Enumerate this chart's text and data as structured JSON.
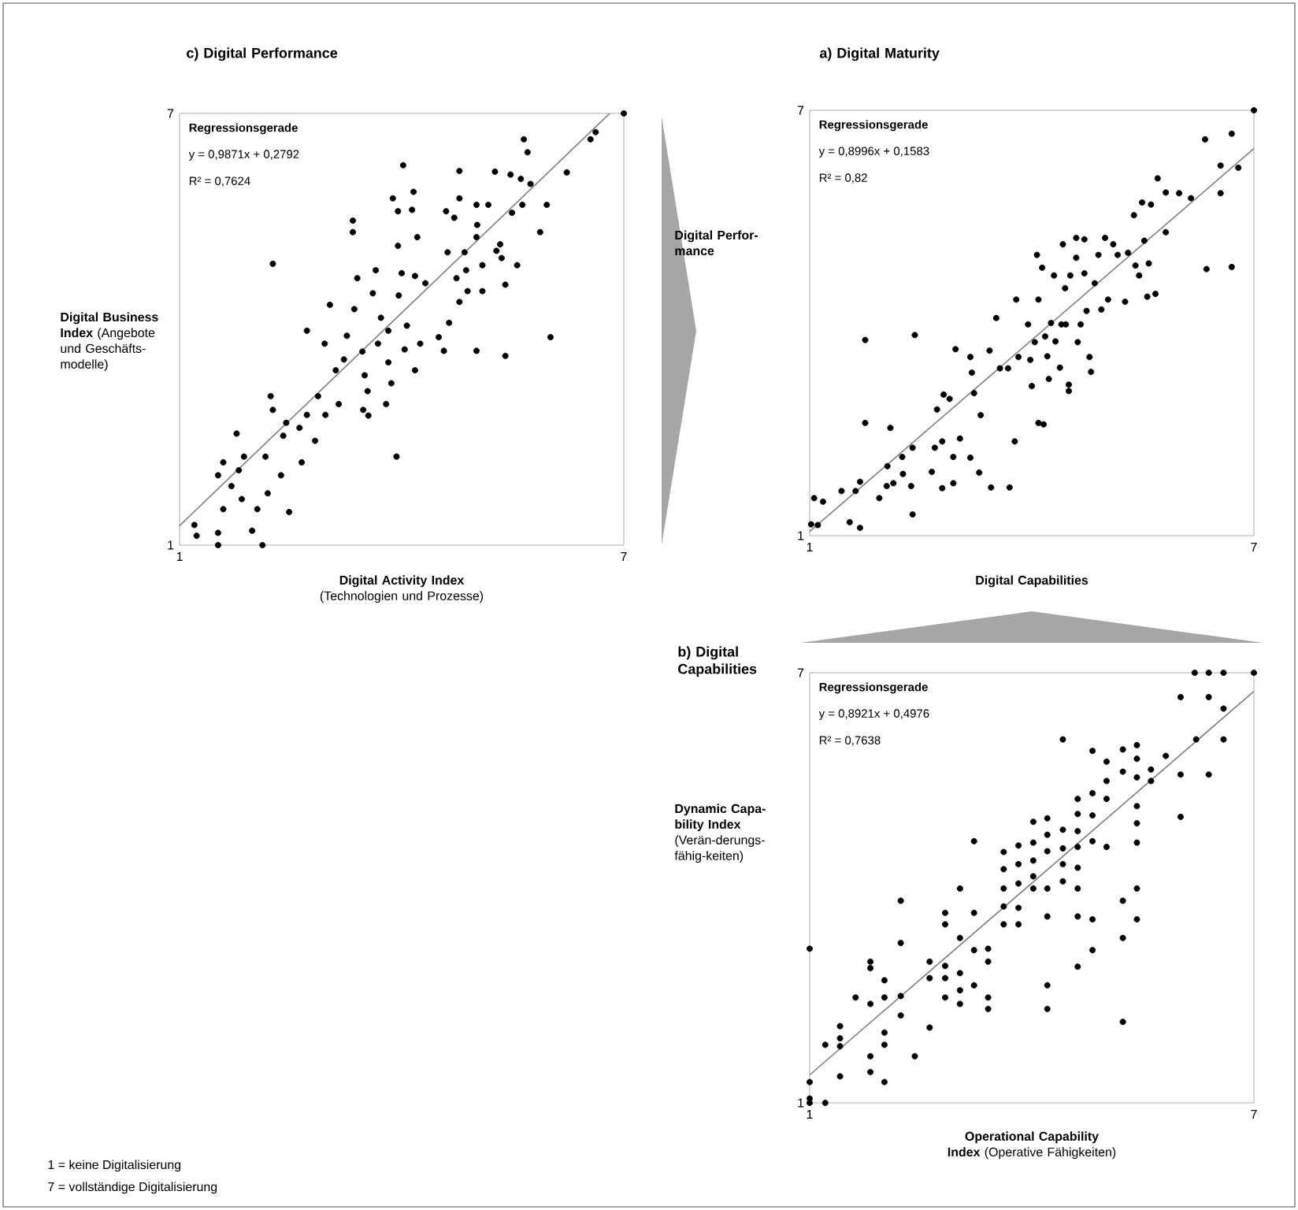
{
  "chart_data": [
    {
      "type": "scatter",
      "title": "c) Digital Performance",
      "xlabel": "**Digital Activity Index** (Technologien und Prozesse)",
      "ylabel": "**Digital Business Index** (Angebote und Geschäfts-modelle)",
      "xlim": [
        1,
        7
      ],
      "ylim": [
        1,
        7
      ],
      "xticks": [
        1,
        7
      ],
      "yticks": [
        1,
        7
      ],
      "annotations": [
        "Regressionsgerade",
        "y = 0,9871x + 0,2792",
        "R² = 0,7624",
        "1 = keine Digitalisierung",
        "7 = vollständige Digitalisierung"
      ],
      "series": [
        {
          "marker": "circle",
          "color": "#000000",
          "x": [
            7.0,
            1.2,
            1.23,
            1.52,
            1.52,
            2.12,
            1.98,
            2.05,
            2.48,
            1.59,
            1.52,
            1.59,
            1.77,
            1.8,
            1.7,
            1.87,
            1.84,
            2.16,
            2.19,
            2.23,
            2.26,
            2.26,
            2.37,
            2.4,
            2.44,
            2.62,
            2.65,
            2.72,
            2.72,
            2.83,
            2.87,
            2.96,
            2.97,
            3.03,
            3.11,
            3.15,
            3.22,
            3.26,
            3.34,
            3.34,
            3.36,
            3.4,
            3.47,
            3.5,
            3.48,
            3.54,
            3.55,
            3.61,
            3.65,
            3.68,
            3.72,
            3.79,
            3.82,
            3.82,
            3.86,
            3.88,
            3.93,
            3.95,
            3.95,
            3.96,
            4.0,
            4.02,
            4.04,
            4.07,
            4.14,
            4.16,
            4.18,
            4.18,
            4.21,
            4.25,
            4.32,
            4.5,
            4.57,
            4.6,
            4.62,
            4.64,
            4.71,
            4.74,
            4.78,
            4.78,
            4.78,
            4.85,
            4.87,
            4.89,
            5.01,
            5.01,
            5.01,
            5.02,
            5.09,
            5.09,
            5.17,
            5.26,
            5.28,
            5.33,
            5.35,
            5.4,
            5.4,
            5.47,
            5.49,
            5.56,
            5.61,
            5.63,
            5.65,
            5.7,
            5.74,
            5.87,
            5.96,
            6.01,
            6.23,
            6.55,
            6.62
          ],
          "values": [
            7.0,
            1.28,
            1.13,
            1.17,
            1.0,
            1.0,
            1.2,
            1.5,
            1.46,
            1.5,
            1.97,
            2.15,
            2.55,
            2.04,
            1.82,
            2.23,
            1.64,
            2.23,
            1.72,
            3.07,
            2.88,
            4.91,
            1.97,
            2.52,
            2.7,
            2.63,
            2.15,
            3.98,
            2.81,
            2.45,
            3.07,
            3.8,
            2.81,
            4.34,
            3.43,
            2.96,
            3.58,
            3.91,
            5.51,
            5.35,
            4.28,
            4.71,
            3.69,
            3.36,
            2.88,
            3.14,
            2.8,
            4.5,
            4.82,
            3.8,
            4.16,
            2.96,
            3.54,
            3.98,
            3.25,
            5.82,
            2.23,
            5.16,
            5.64,
            4.47,
            4.78,
            6.28,
            3.72,
            4.05,
            5.66,
            5.91,
            4.74,
            3.43,
            5.28,
            3.8,
            4.64,
            3.89,
            3.7,
            5.64,
            5.07,
            4.09,
            5.55,
            4.71,
            5.82,
            6.2,
            4.38,
            5.07,
            4.82,
            4.53,
            5.73,
            5.28,
            3.7,
            5.45,
            4.89,
            4.53,
            5.73,
            6.19,
            5.09,
            5.18,
            4.99,
            4.62,
            3.63,
            6.15,
            5.62,
            4.89,
            6.09,
            5.73,
            6.64,
            6.46,
            6.02,
            5.35,
            5.73,
            3.89,
            6.18,
            6.64,
            6.74
          ]
        },
        {
          "type": "line",
          "marker": "none",
          "color": "#808080",
          "x": [
            1,
            6.81
          ],
          "values": [
            1.27,
            7.0
          ]
        }
      ]
    },
    {
      "type": "scatter",
      "title": "a) Digital Maturity",
      "xlabel": "**Digital Capabilities**",
      "ylabel": "**Digital Perfor-mance**",
      "xlim": [
        1,
        7
      ],
      "ylim": [
        1,
        7
      ],
      "xticks": [
        1,
        7
      ],
      "yticks": [
        1,
        7
      ],
      "annotations": [
        "Regressionsgerade",
        "y = 0,8996x + 0,1583",
        "R² = 0,82"
      ],
      "series": [
        {
          "marker": "circle",
          "color": "#000000",
          "x": [
            7.0,
            1.02,
            1.11,
            1.06,
            1.18,
            1.43,
            1.54,
            1.68,
            1.62,
            1.68,
            1.75,
            1.75,
            1.94,
            2.04,
            2.05,
            2.09,
            2.13,
            2.25,
            2.26,
            2.37,
            2.39,
            2.39,
            2.42,
            2.65,
            2.69,
            2.72,
            2.79,
            2.79,
            2.81,
            2.89,
            2.94,
            2.94,
            2.97,
            3.03,
            3.17,
            3.17,
            3.19,
            3.22,
            3.29,
            3.31,
            3.43,
            3.45,
            3.52,
            3.57,
            3.68,
            3.7,
            3.77,
            3.79,
            3.82,
            3.95,
            3.98,
            4.0,
            4.04,
            4.07,
            4.09,
            4.09,
            4.14,
            4.16,
            4.18,
            4.21,
            4.23,
            4.26,
            4.3,
            4.32,
            4.38,
            4.4,
            4.42,
            4.45,
            4.46,
            4.5,
            4.5,
            4.52,
            4.6,
            4.6,
            4.62,
            4.66,
            4.71,
            4.71,
            4.74,
            4.78,
            4.8,
            4.85,
            4.9,
            4.94,
            4.99,
            5.03,
            5.1,
            5.16,
            5.26,
            5.3,
            5.38,
            5.4,
            5.45,
            5.49,
            5.52,
            5.56,
            5.58,
            5.61,
            5.67,
            5.7,
            5.81,
            5.81,
            5.99,
            6.15,
            6.34,
            6.36,
            6.55,
            6.55,
            6.7,
            6.7,
            6.79
          ],
          "values": [
            7.0,
            1.16,
            1.15,
            1.53,
            1.48,
            1.63,
            1.19,
            1.11,
            1.63,
            1.76,
            3.76,
            2.59,
            1.53,
            1.7,
            1.98,
            2.52,
            1.74,
            2.11,
            1.87,
            1.7,
            1.3,
            2.24,
            3.83,
            1.9,
            2.24,
            2.78,
            2.33,
            1.67,
            2.99,
            2.93,
            2.11,
            1.74,
            3.63,
            2.37,
            2.1,
            3.52,
            3.3,
            3.01,
            1.89,
            2.7,
            3.61,
            1.68,
            4.07,
            3.36,
            3.36,
            1.68,
            2.33,
            4.33,
            3.52,
            3.98,
            3.48,
            3.11,
            3.73,
            4.96,
            4.33,
            2.59,
            4.78,
            2.57,
            3.81,
            3.53,
            3.21,
            4.0,
            4.67,
            3.74,
            3.37,
            3.98,
            5.11,
            4.49,
            3.98,
            3.13,
            3.04,
            4.67,
            5.2,
            4.92,
            3.73,
            3.98,
            5.18,
            4.7,
            4.17,
            3.52,
            3.31,
            4.56,
            4.96,
            4.19,
            5.2,
            4.33,
            5.11,
            4.96,
            4.3,
            4.99,
            5.52,
            4.81,
            4.67,
            5.7,
            5.16,
            4.37,
            4.84,
            5.67,
            4.41,
            6.04,
            5.84,
            5.28,
            5.83,
            5.76,
            6.59,
            4.76,
            5.83,
            6.22,
            6.67,
            4.79,
            6.19
          ]
        },
        {
          "type": "line",
          "marker": "none",
          "color": "#808080",
          "x": [
            1,
            7
          ],
          "values": [
            1.06,
            6.46
          ]
        }
      ]
    },
    {
      "type": "scatter",
      "title": "b) Digital Capabilities",
      "xlabel": "**Operational Capability Index** (Operative Fähigkeiten)",
      "ylabel": "**Dynamic Capa-bility Index** (Verän-derungs-fähig-keiten)",
      "xlim": [
        1,
        7
      ],
      "ylim": [
        1,
        7
      ],
      "xticks": [
        1,
        7
      ],
      "yticks": [
        1,
        7
      ],
      "annotations": [
        "Regressionsgerade",
        "y = 0,8921x + 0,4976",
        "R² = 0,7638"
      ],
      "series": [
        {
          "marker": "circle",
          "color": "#000000",
          "x": [
            7.0,
            6.2,
            6.39,
            6.59,
            6.01,
            6.39,
            6.59,
            6.22,
            6.59,
            6.01,
            6.39,
            6.01,
            5.81,
            5.61,
            5.61,
            5.42,
            5.42,
            5.42,
            5.42,
            5.42,
            5.42,
            5.42,
            5.42,
            5.23,
            5.23,
            5.23,
            5.23,
            5.23,
            5.01,
            5.01,
            5.01,
            5.01,
            4.82,
            4.82,
            4.82,
            4.82,
            4.82,
            4.82,
            4.62,
            4.62,
            4.62,
            4.62,
            4.62,
            4.62,
            4.62,
            4.62,
            4.42,
            4.42,
            4.42,
            4.42,
            4.42,
            4.21,
            4.21,
            4.21,
            4.21,
            4.21,
            4.21,
            4.21,
            4.02,
            4.02,
            4.02,
            4.02,
            4.02,
            3.82,
            3.82,
            3.82,
            3.82,
            3.82,
            3.62,
            3.62,
            3.62,
            3.62,
            3.62,
            3.41,
            3.41,
            3.41,
            3.41,
            3.22,
            3.22,
            3.22,
            3.22,
            3.03,
            3.03,
            3.03,
            3.03,
            3.03,
            2.83,
            2.83,
            2.83,
            2.83,
            2.83,
            2.62,
            2.62,
            2.62,
            2.42,
            2.23,
            2.23,
            2.23,
            2.23,
            2.01,
            2.01,
            2.01,
            2.01,
            2.01,
            1.82,
            1.82,
            1.82,
            1.82,
            1.82,
            1.62,
            1.41,
            1.41,
            1.41,
            1.41,
            1.21,
            1.0,
            1.0,
            1.0,
            1.0,
            1.21
          ],
          "values": [
            7.0,
            7.0,
            7.0,
            7.0,
            6.66,
            6.66,
            6.5,
            6.07,
            6.07,
            5.58,
            5.58,
            4.99,
            5.84,
            5.65,
            5.49,
            5.99,
            5.8,
            5.54,
            5.14,
            4.9,
            4.63,
            3.99,
            3.56,
            5.93,
            5.62,
            3.82,
            3.3,
            2.13,
            5.76,
            5.49,
            5.24,
            4.57,
            5.91,
            5.32,
            5.01,
            4.65,
            3.56,
            3.13,
            5.24,
            5.03,
            4.79,
            4.57,
            4.28,
            3.99,
            3.6,
            2.9,
            6.07,
            4.81,
            4.55,
            4.33,
            4.09,
            4.97,
            4.74,
            4.51,
            3.99,
            3.6,
            2.64,
            2.31,
            4.92,
            4.63,
            4.38,
            4.16,
            3.99,
            4.59,
            4.33,
            4.06,
            3.72,
            3.49,
            4.5,
            4.26,
            3.99,
            3.74,
            3.49,
            3.15,
            2.97,
            2.47,
            2.31,
            4.65,
            3.65,
            3.13,
            2.64,
            3.99,
            3.3,
            2.81,
            2.57,
            2.38,
            3.65,
            3.49,
            2.91,
            2.74,
            2.47,
            2.97,
            2.74,
            2.05,
            1.65,
            3.82,
            3.23,
            2.49,
            2.22,
            2.71,
            2.47,
            1.98,
            1.81,
            1.29,
            2.97,
            2.88,
            2.38,
            1.65,
            1.43,
            2.47,
            2.07,
            1.9,
            1.79,
            1.37,
            1.81,
            3.15,
            1.29,
            1.06,
            1.0,
            1.0
          ]
        },
        {
          "type": "line",
          "marker": "none",
          "color": "#808080",
          "x": [
            1,
            7
          ],
          "values": [
            1.39,
            6.74
          ]
        }
      ]
    }
  ]
}
